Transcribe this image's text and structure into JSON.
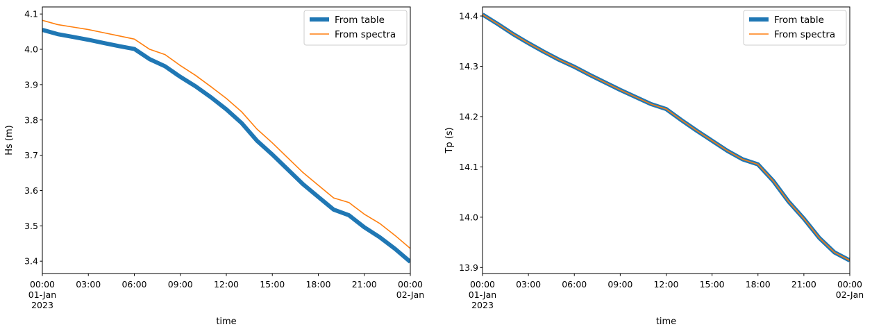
{
  "chart_data": [
    {
      "type": "line",
      "xlabel": "time",
      "ylabel": "Hs (m)",
      "xlim": [
        "2023-01-01T00:00",
        "2023-01-02T00:00"
      ],
      "ylim": [
        3.365,
        4.12
      ],
      "x_ticks": [
        {
          "value": "2023-01-01T00:00",
          "lines": [
            "00:00",
            "01-Jan",
            "2023"
          ]
        },
        {
          "value": "2023-01-01T03:00",
          "lines": [
            "03:00"
          ]
        },
        {
          "value": "2023-01-01T06:00",
          "lines": [
            "06:00"
          ]
        },
        {
          "value": "2023-01-01T09:00",
          "lines": [
            "09:00"
          ]
        },
        {
          "value": "2023-01-01T12:00",
          "lines": [
            "12:00"
          ]
        },
        {
          "value": "2023-01-01T15:00",
          "lines": [
            "15:00"
          ]
        },
        {
          "value": "2023-01-01T18:00",
          "lines": [
            "18:00"
          ]
        },
        {
          "value": "2023-01-01T21:00",
          "lines": [
            "21:00"
          ]
        },
        {
          "value": "2023-01-02T00:00",
          "lines": [
            "00:00",
            "02-Jan"
          ]
        }
      ],
      "y_ticks": [
        "3.4",
        "3.5",
        "3.6",
        "3.7",
        "3.8",
        "3.9",
        "4.0",
        "4.1"
      ],
      "legend": "top-right",
      "grid": false,
      "x": [
        "2023-01-01T00:00",
        "2023-01-01T01:00",
        "2023-01-01T02:00",
        "2023-01-01T03:00",
        "2023-01-01T04:00",
        "2023-01-01T05:00",
        "2023-01-01T06:00",
        "2023-01-01T07:00",
        "2023-01-01T08:00",
        "2023-01-01T09:00",
        "2023-01-01T10:00",
        "2023-01-01T11:00",
        "2023-01-01T12:00",
        "2023-01-01T13:00",
        "2023-01-01T14:00",
        "2023-01-01T15:00",
        "2023-01-01T16:00",
        "2023-01-01T17:00",
        "2023-01-01T18:00",
        "2023-01-01T19:00",
        "2023-01-01T20:00",
        "2023-01-01T21:00",
        "2023-01-01T22:00",
        "2023-01-01T23:00",
        "2023-01-02T00:00"
      ],
      "series": [
        {
          "name": "From table",
          "color": "#1f77b4",
          "line_width": "thick",
          "values": [
            4.055,
            4.043,
            4.035,
            4.027,
            4.018,
            4.009,
            4.001,
            3.972,
            3.952,
            3.922,
            3.895,
            3.864,
            3.83,
            3.791,
            3.741,
            3.702,
            3.66,
            3.618,
            3.582,
            3.546,
            3.53,
            3.496,
            3.468,
            3.435,
            3.398
          ]
        },
        {
          "name": "From spectra",
          "color": "#ff7f0e",
          "line_width": "thin",
          "values": [
            4.082,
            4.07,
            4.063,
            4.056,
            4.047,
            4.038,
            4.029,
            4.0,
            3.985,
            3.954,
            3.926,
            3.894,
            3.861,
            3.823,
            3.774,
            3.735,
            3.693,
            3.651,
            3.615,
            3.579,
            3.566,
            3.533,
            3.507,
            3.473,
            3.436
          ]
        }
      ]
    },
    {
      "type": "line",
      "xlabel": "time",
      "ylabel": "Tp (s)",
      "xlim": [
        "2023-01-01T00:00",
        "2023-01-02T00:00"
      ],
      "ylim": [
        13.888,
        14.418
      ],
      "x_ticks": [
        {
          "value": "2023-01-01T00:00",
          "lines": [
            "00:00",
            "01-Jan",
            "2023"
          ]
        },
        {
          "value": "2023-01-01T03:00",
          "lines": [
            "03:00"
          ]
        },
        {
          "value": "2023-01-01T06:00",
          "lines": [
            "06:00"
          ]
        },
        {
          "value": "2023-01-01T09:00",
          "lines": [
            "09:00"
          ]
        },
        {
          "value": "2023-01-01T12:00",
          "lines": [
            "12:00"
          ]
        },
        {
          "value": "2023-01-01T15:00",
          "lines": [
            "15:00"
          ]
        },
        {
          "value": "2023-01-01T18:00",
          "lines": [
            "18:00"
          ]
        },
        {
          "value": "2023-01-01T21:00",
          "lines": [
            "21:00"
          ]
        },
        {
          "value": "2023-01-02T00:00",
          "lines": [
            "00:00",
            "02-Jan"
          ]
        }
      ],
      "y_ticks": [
        "13.9",
        "14.0",
        "14.1",
        "14.2",
        "14.3",
        "14.4"
      ],
      "legend": "top-right",
      "grid": false,
      "x": [
        "2023-01-01T00:00",
        "2023-01-01T01:00",
        "2023-01-01T02:00",
        "2023-01-01T03:00",
        "2023-01-01T04:00",
        "2023-01-01T05:00",
        "2023-01-01T06:00",
        "2023-01-01T07:00",
        "2023-01-01T08:00",
        "2023-01-01T09:00",
        "2023-01-01T10:00",
        "2023-01-01T11:00",
        "2023-01-01T12:00",
        "2023-01-01T13:00",
        "2023-01-01T14:00",
        "2023-01-01T15:00",
        "2023-01-01T16:00",
        "2023-01-01T17:00",
        "2023-01-01T18:00",
        "2023-01-01T19:00",
        "2023-01-01T20:00",
        "2023-01-01T21:00",
        "2023-01-01T22:00",
        "2023-01-01T23:00",
        "2023-01-02T00:00"
      ],
      "series": [
        {
          "name": "From table",
          "color": "#1f77b4",
          "line_width": "thick",
          "values": [
            14.403,
            14.384,
            14.364,
            14.346,
            14.329,
            14.313,
            14.299,
            14.283,
            14.268,
            14.253,
            14.239,
            14.225,
            14.215,
            14.193,
            14.172,
            14.152,
            14.132,
            14.115,
            14.105,
            14.072,
            14.031,
            13.997,
            13.959,
            13.93,
            13.914
          ]
        },
        {
          "name": "From spectra",
          "color": "#ff7f0e",
          "line_width": "thin",
          "values": [
            14.403,
            14.384,
            14.364,
            14.346,
            14.329,
            14.313,
            14.299,
            14.283,
            14.268,
            14.253,
            14.239,
            14.225,
            14.215,
            14.193,
            14.172,
            14.152,
            14.132,
            14.115,
            14.105,
            14.072,
            14.031,
            13.997,
            13.959,
            13.93,
            13.914
          ]
        }
      ]
    }
  ]
}
